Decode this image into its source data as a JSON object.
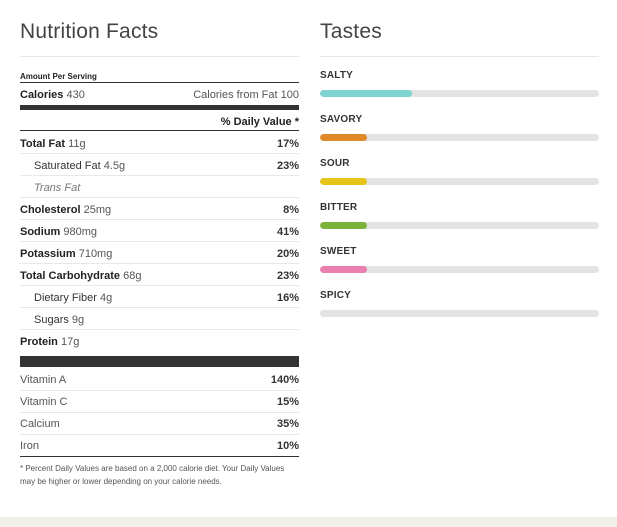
{
  "nutrition": {
    "title": "Nutrition Facts",
    "amount_per_serving": "Amount Per Serving",
    "calories_label": "Calories",
    "calories_value": "430",
    "calories_from_fat_label": "Calories from Fat",
    "calories_from_fat_value": "100",
    "daily_value_header": "% Daily Value *",
    "rows": [
      {
        "label": "Total Fat",
        "amount": "11g",
        "dv": "17%"
      },
      {
        "label": "Saturated Fat",
        "amount": "4.5g",
        "dv": "23%"
      },
      {
        "label": "Trans Fat",
        "amount": "",
        "dv": ""
      },
      {
        "label": "Cholesterol",
        "amount": "25mg",
        "dv": "8%"
      },
      {
        "label": "Sodium",
        "amount": "980mg",
        "dv": "41%"
      },
      {
        "label": "Potassium",
        "amount": "710mg",
        "dv": "20%"
      },
      {
        "label": "Total Carbohydrate",
        "amount": "68g",
        "dv": "23%"
      },
      {
        "label": "Dietary Fiber",
        "amount": "4g",
        "dv": "16%"
      },
      {
        "label": "Sugars",
        "amount": "9g",
        "dv": ""
      },
      {
        "label": "Protein",
        "amount": "17g",
        "dv": ""
      }
    ],
    "vitamins": [
      {
        "label": "Vitamin A",
        "dv": "140%"
      },
      {
        "label": "Vitamin C",
        "dv": "15%"
      },
      {
        "label": "Calcium",
        "dv": "35%"
      },
      {
        "label": "Iron",
        "dv": "10%"
      }
    ],
    "footnote": "* Percent Daily Values are based on a 2,000 calorie diet. Your Daily Values may be higher or lower depending on your calorie needs."
  },
  "tastes": {
    "title": "Tastes",
    "items": [
      {
        "label": "SALTY",
        "level": 0.33,
        "color": "#7fd3d0"
      },
      {
        "label": "SAVORY",
        "level": 0.17,
        "color": "#e08a2a"
      },
      {
        "label": "SOUR",
        "level": 0.17,
        "color": "#e6c51a"
      },
      {
        "label": "BITTER",
        "level": 0.17,
        "color": "#7bb33a"
      },
      {
        "label": "SWEET",
        "level": 0.17,
        "color": "#ea7fb0"
      },
      {
        "label": "SPICY",
        "level": 0,
        "color": "#e3e3e3"
      }
    ]
  }
}
